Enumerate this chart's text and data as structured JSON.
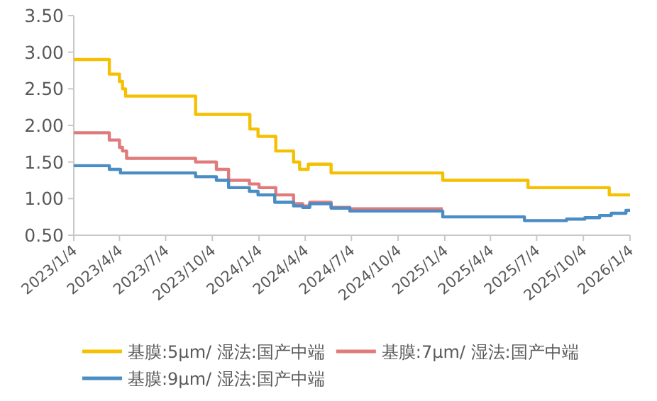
{
  "chart_data": {
    "type": "step",
    "legend": "bottom",
    "xlim": [
      "2023-01-04",
      "2026-01-04"
    ],
    "xticks": [
      {
        "value": "2023-01-04",
        "label": "2023/1/4"
      },
      {
        "value": "2023-04-04",
        "label": "2023/4/4"
      },
      {
        "value": "2023-07-04",
        "label": "2023/7/4"
      },
      {
        "value": "2023-10-04",
        "label": "2023/10/4"
      },
      {
        "value": "2024-01-04",
        "label": "2024/1/4"
      },
      {
        "value": "2024-04-04",
        "label": "2024/4/4"
      },
      {
        "value": "2024-07-04",
        "label": "2024/7/4"
      },
      {
        "value": "2024-10-04",
        "label": "2024/10/4"
      },
      {
        "value": "2025-01-04",
        "label": "2025/1/4"
      },
      {
        "value": "2025-04-04",
        "label": "2025/4/4"
      },
      {
        "value": "2025-07-04",
        "label": "2025/7/4"
      },
      {
        "value": "2025-10-04",
        "label": "2025/10/4"
      },
      {
        "value": "2026-01-04",
        "label": "2026/1/4"
      }
    ],
    "ylim": [
      0.5,
      3.5
    ],
    "yticks": [
      {
        "value": 0.5,
        "label": "0.50"
      },
      {
        "value": 1,
        "label": "1.00"
      },
      {
        "value": 1.5,
        "label": "1.50"
      },
      {
        "value": 2,
        "label": "2.00"
      },
      {
        "value": 2.5,
        "label": "2.50"
      },
      {
        "value": 3,
        "label": "3.00"
      },
      {
        "value": 3.5,
        "label": "3.50"
      }
    ],
    "series": [
      {
        "name": "基膜:5μm/ 湿法:国产中端",
        "color": "#f5c000",
        "x": [
          "2023-01-04",
          "2023-03-15",
          "2023-04-04",
          "2023-04-10",
          "2023-04-16",
          "2023-09-01",
          "2023-12-17",
          "2024-01-02",
          "2024-02-06",
          "2024-03-12",
          "2024-03-24",
          "2024-04-10",
          "2024-05-25",
          "2024-12-31",
          "2025-06-17",
          "2025-11-24",
          "2026-01-04"
        ],
        "values": [
          2.9,
          2.7,
          2.6,
          2.5,
          2.4,
          2.15,
          1.95,
          1.85,
          1.65,
          1.5,
          1.4,
          1.47,
          1.35,
          1.25,
          1.15,
          1.05,
          1.05
        ]
      },
      {
        "name": "基膜:7μm/ 湿法:国产中端",
        "color": "#e07b7b",
        "x": [
          "2023-01-04",
          "2023-03-15",
          "2023-04-04",
          "2023-04-10",
          "2023-04-18",
          "2023-09-01",
          "2023-10-12",
          "2023-11-05",
          "2023-12-16",
          "2024-01-04",
          "2024-02-06",
          "2024-03-12",
          "2024-03-30",
          "2024-04-13",
          "2024-05-25",
          "2024-07-01",
          "2024-12-31"
        ],
        "values": [
          1.9,
          1.8,
          1.7,
          1.65,
          1.55,
          1.5,
          1.4,
          1.25,
          1.2,
          1.15,
          1.05,
          0.93,
          0.9,
          0.95,
          0.88,
          0.86,
          0.86
        ]
      },
      {
        "name": "基膜:9μm/ 湿法:国产中端",
        "color": "#4a8cc4",
        "x": [
          "2023-01-04",
          "2023-03-15",
          "2023-04-06",
          "2023-09-01",
          "2023-10-12",
          "2023-11-05",
          "2023-12-16",
          "2024-01-02",
          "2024-02-04",
          "2024-03-12",
          "2024-03-30",
          "2024-04-13",
          "2024-05-25",
          "2024-07-01",
          "2024-12-31",
          "2025-06-10",
          "2025-09-01",
          "2025-10-07",
          "2025-11-05",
          "2025-11-28",
          "2025-12-27",
          "2026-01-04"
        ],
        "values": [
          1.45,
          1.4,
          1.35,
          1.3,
          1.25,
          1.15,
          1.1,
          1.05,
          0.95,
          0.9,
          0.88,
          0.93,
          0.87,
          0.83,
          0.75,
          0.7,
          0.72,
          0.74,
          0.77,
          0.8,
          0.84,
          0.84
        ]
      }
    ]
  }
}
